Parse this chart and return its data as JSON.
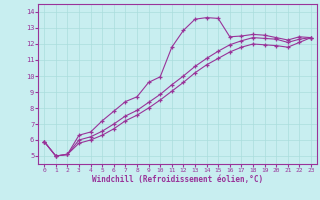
{
  "title": "",
  "xlabel": "Windchill (Refroidissement éolien,°C)",
  "ylabel": "",
  "bg_color": "#c8eef0",
  "line_color": "#993399",
  "grid_color": "#aadddd",
  "xlim": [
    -0.5,
    23.5
  ],
  "ylim": [
    4.5,
    14.5
  ],
  "xticks": [
    0,
    1,
    2,
    3,
    4,
    5,
    6,
    7,
    8,
    9,
    10,
    11,
    12,
    13,
    14,
    15,
    16,
    17,
    18,
    19,
    20,
    21,
    22,
    23
  ],
  "yticks": [
    5,
    6,
    7,
    8,
    9,
    10,
    11,
    12,
    13,
    14
  ],
  "line1_x": [
    0,
    1,
    2,
    3,
    4,
    5,
    6,
    7,
    8,
    9,
    10,
    11,
    12,
    13,
    14,
    15,
    16,
    17,
    18,
    19,
    20,
    21,
    22,
    23
  ],
  "line1_y": [
    5.9,
    5.0,
    5.1,
    6.3,
    6.5,
    7.2,
    7.8,
    8.4,
    8.7,
    9.6,
    9.95,
    11.8,
    12.85,
    13.55,
    13.65,
    13.6,
    12.45,
    12.5,
    12.6,
    12.55,
    12.4,
    12.25,
    12.45,
    12.4
  ],
  "line2_x": [
    0,
    1,
    2,
    3,
    4,
    5,
    6,
    7,
    8,
    9,
    10,
    11,
    12,
    13,
    14,
    15,
    16,
    17,
    18,
    19,
    20,
    21,
    22,
    23
  ],
  "line2_y": [
    5.9,
    5.0,
    5.1,
    6.0,
    6.2,
    6.55,
    7.0,
    7.5,
    7.85,
    8.35,
    8.85,
    9.45,
    10.0,
    10.6,
    11.1,
    11.55,
    11.95,
    12.2,
    12.4,
    12.35,
    12.3,
    12.1,
    12.3,
    12.4
  ],
  "line3_x": [
    0,
    1,
    2,
    3,
    4,
    5,
    6,
    7,
    8,
    9,
    10,
    11,
    12,
    13,
    14,
    15,
    16,
    17,
    18,
    19,
    20,
    21,
    22,
    23
  ],
  "line3_y": [
    5.9,
    5.0,
    5.1,
    5.8,
    6.0,
    6.3,
    6.7,
    7.2,
    7.55,
    8.0,
    8.5,
    9.05,
    9.6,
    10.2,
    10.7,
    11.1,
    11.5,
    11.8,
    12.0,
    11.95,
    11.9,
    11.8,
    12.1,
    12.4
  ]
}
